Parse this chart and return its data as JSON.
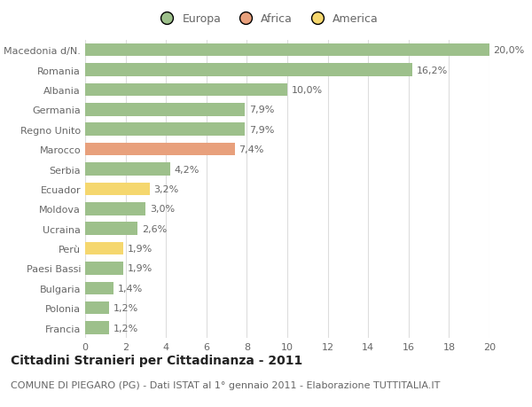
{
  "categories": [
    "Francia",
    "Polonia",
    "Bulgaria",
    "Paesi Bassi",
    "Perù",
    "Ucraina",
    "Moldova",
    "Ecuador",
    "Serbia",
    "Marocco",
    "Regno Unito",
    "Germania",
    "Albania",
    "Romania",
    "Macedonia d/N."
  ],
  "values": [
    1.2,
    1.2,
    1.4,
    1.9,
    1.9,
    2.6,
    3.0,
    3.2,
    4.2,
    7.4,
    7.9,
    7.9,
    10.0,
    16.2,
    20.0
  ],
  "labels": [
    "1,2%",
    "1,2%",
    "1,4%",
    "1,9%",
    "1,9%",
    "2,6%",
    "3,0%",
    "3,2%",
    "4,2%",
    "7,4%",
    "7,9%",
    "7,9%",
    "10,0%",
    "16,2%",
    "20,0%"
  ],
  "continents": [
    "Europa",
    "Europa",
    "Europa",
    "Europa",
    "America",
    "Europa",
    "Europa",
    "America",
    "Europa",
    "Africa",
    "Europa",
    "Europa",
    "Europa",
    "Europa",
    "Europa"
  ],
  "colors": {
    "Europa": "#9dc08b",
    "Africa": "#e8a07c",
    "America": "#f5d76e"
  },
  "legend_items": [
    "Europa",
    "Africa",
    "America"
  ],
  "title": "Cittadini Stranieri per Cittadinanza - 2011",
  "subtitle": "COMUNE DI PIEGARO (PG) - Dati ISTAT al 1° gennaio 2011 - Elaborazione TUTTITALIA.IT",
  "xlim": [
    0,
    20
  ],
  "xticks": [
    0,
    2,
    4,
    6,
    8,
    10,
    12,
    14,
    16,
    18,
    20
  ],
  "background_color": "#ffffff",
  "bar_height": 0.65,
  "grid_color": "#dddddd",
  "title_fontsize": 10,
  "subtitle_fontsize": 8,
  "label_fontsize": 8,
  "tick_fontsize": 8,
  "legend_fontsize": 9,
  "text_color": "#666666"
}
